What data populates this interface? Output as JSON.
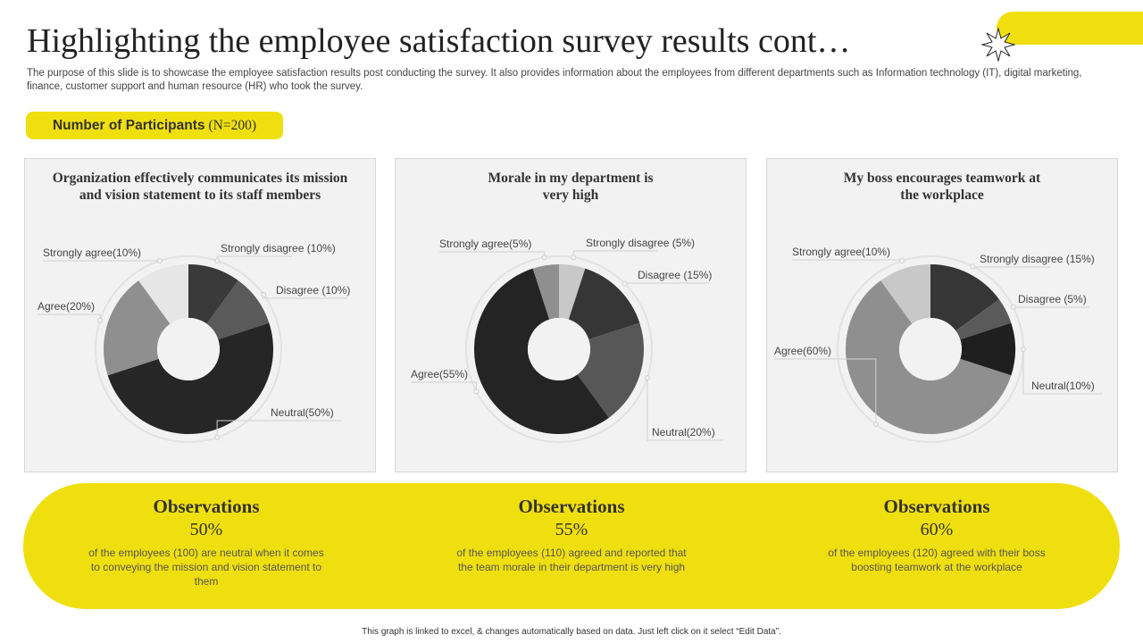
{
  "title": "Highlighting the employee satisfaction survey results cont…",
  "subtitle": "The purpose of this slide is to showcase the employee satisfaction results post conducting the survey. It also provides information about the employees from different departments such as Information technology (IT), digital marketing, finance, customer support and human resource (HR) who took the survey.",
  "participants": {
    "label": "Number of Participants",
    "count": "(N=200)"
  },
  "accent_color": "#f0df0f",
  "chart_data": [
    {
      "type": "pie",
      "title": "Organization effectively communicates its mission and vision statement to its staff members",
      "slices": [
        {
          "label": "Strongly disagree (10%)",
          "value": 10,
          "color": "#3a3a3a"
        },
        {
          "label": "Disagree (10%)",
          "value": 10,
          "color": "#5a5a5a"
        },
        {
          "label": "Neutral(50%)",
          "value": 50,
          "color": "#262626"
        },
        {
          "label": "Agree(20%)",
          "value": 20,
          "color": "#8f8f8f"
        },
        {
          "label": "Strongly agree(10%)",
          "value": 10,
          "color": "#e6e6e6"
        }
      ]
    },
    {
      "type": "pie",
      "title": "Morale in my department is very high",
      "slices": [
        {
          "label": "Strongly disagree (5%)",
          "value": 5,
          "color": "#c8c8c8"
        },
        {
          "label": "Disagree (15%)",
          "value": 15,
          "color": "#363636"
        },
        {
          "label": "Neutral(20%)",
          "value": 20,
          "color": "#575757"
        },
        {
          "label": "Agree(55%)",
          "value": 55,
          "color": "#242424"
        },
        {
          "label": "Strongly agree(5%)",
          "value": 5,
          "color": "#8f8f8f"
        }
      ]
    },
    {
      "type": "pie",
      "title": "My boss encourages teamwork at the workplace",
      "slices": [
        {
          "label": "Strongly disagree (15%)",
          "value": 15,
          "color": "#363636"
        },
        {
          "label": "Disagree (5%)",
          "value": 5,
          "color": "#5a5a5a"
        },
        {
          "label": "Neutral(10%)",
          "value": 10,
          "color": "#1f1f1f"
        },
        {
          "label": "Agree(60%)",
          "value": 60,
          "color": "#8f8f8f"
        },
        {
          "label": "Strongly agree(10%)",
          "value": 10,
          "color": "#c8c8c8"
        }
      ]
    }
  ],
  "observations": [
    {
      "heading": "Observations",
      "percent": "50%",
      "text": "of the employees (100) are neutral when it comes to conveying the mission and vision statement to them"
    },
    {
      "heading": "Observations",
      "percent": "55%",
      "text": "of the employees (110) agreed and reported that the team morale in their department is very high"
    },
    {
      "heading": "Observations",
      "percent": "60%",
      "text": "of the employees (120) agreed with their boss boosting teamwork at the workplace"
    }
  ],
  "footer": "This graph is linked to excel, & changes automatically based on data. Just left click on it select “Edit Data”."
}
